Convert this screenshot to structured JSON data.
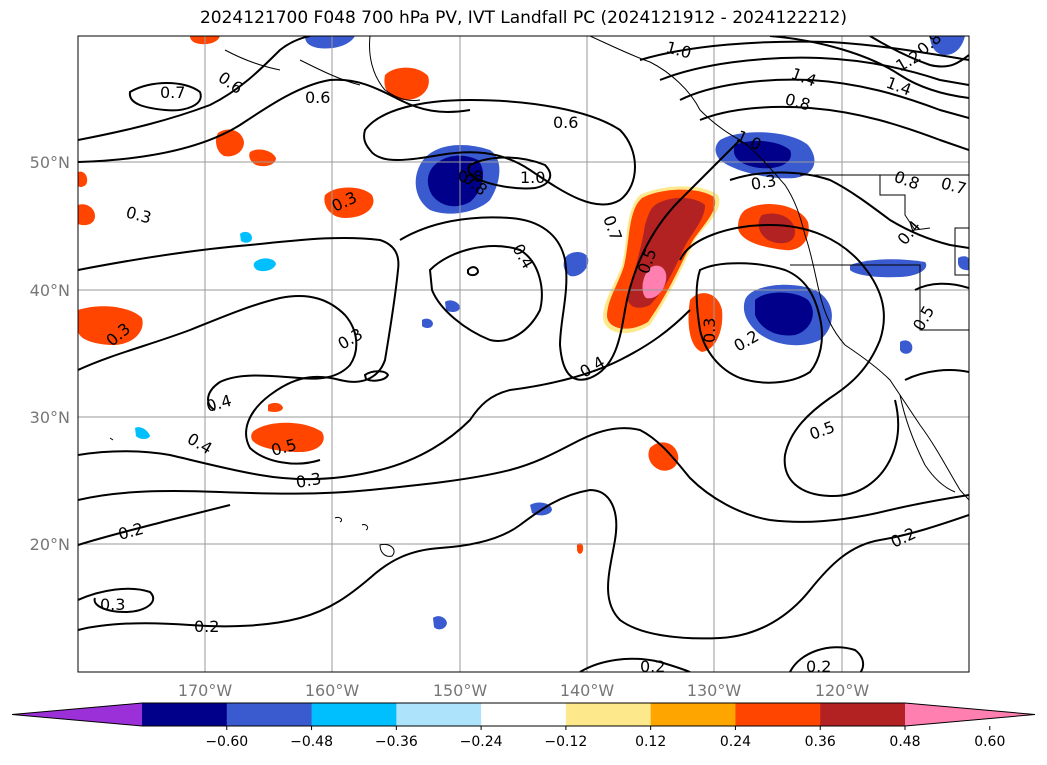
{
  "title": "2024121700 F048 700 hPa PV, IVT Landfall PC (2024121912 - 2024122212)",
  "lat_labels": [
    "50°N",
    "40°N",
    "30°N",
    "20°N"
  ],
  "lon_labels": [
    "170°W",
    "160°W",
    "150°W",
    "140°W",
    "130°W",
    "120°W"
  ],
  "colorbar": {
    "ticks": [
      "−0.60",
      "−0.48",
      "−0.36",
      "−0.24",
      "−0.12",
      "0.12",
      "0.24",
      "0.36",
      "0.48",
      "0.60"
    ],
    "colors": [
      "#9b30d9",
      "#00008b",
      "#3a5bd0",
      "#00bfff",
      "#ade3fb",
      "#ffffff",
      "#fde98c",
      "#ffa500",
      "#ff4500",
      "#b22222",
      "#ff7fb0"
    ]
  },
  "contour_labels": [
    "0.7",
    "0.6",
    "0.6",
    "1.0",
    "0.8",
    "1.0",
    "0.6",
    "0.8",
    "0.3",
    "0.3",
    "0.4",
    "0.7",
    "0.5",
    "0.3",
    "0.2",
    "0.3",
    "0.3",
    "0.4",
    "0.4",
    "0.4",
    "0.5",
    "0.3",
    "0.2",
    "0.3",
    "0.2",
    "0.2",
    "0.5",
    "0.2",
    "1.4",
    "1.2",
    "1.4",
    "0.8",
    "0.8",
    "1.0",
    "0.7",
    "0.8",
    "0.3",
    "0.4",
    "0.5",
    "0.2"
  ]
}
